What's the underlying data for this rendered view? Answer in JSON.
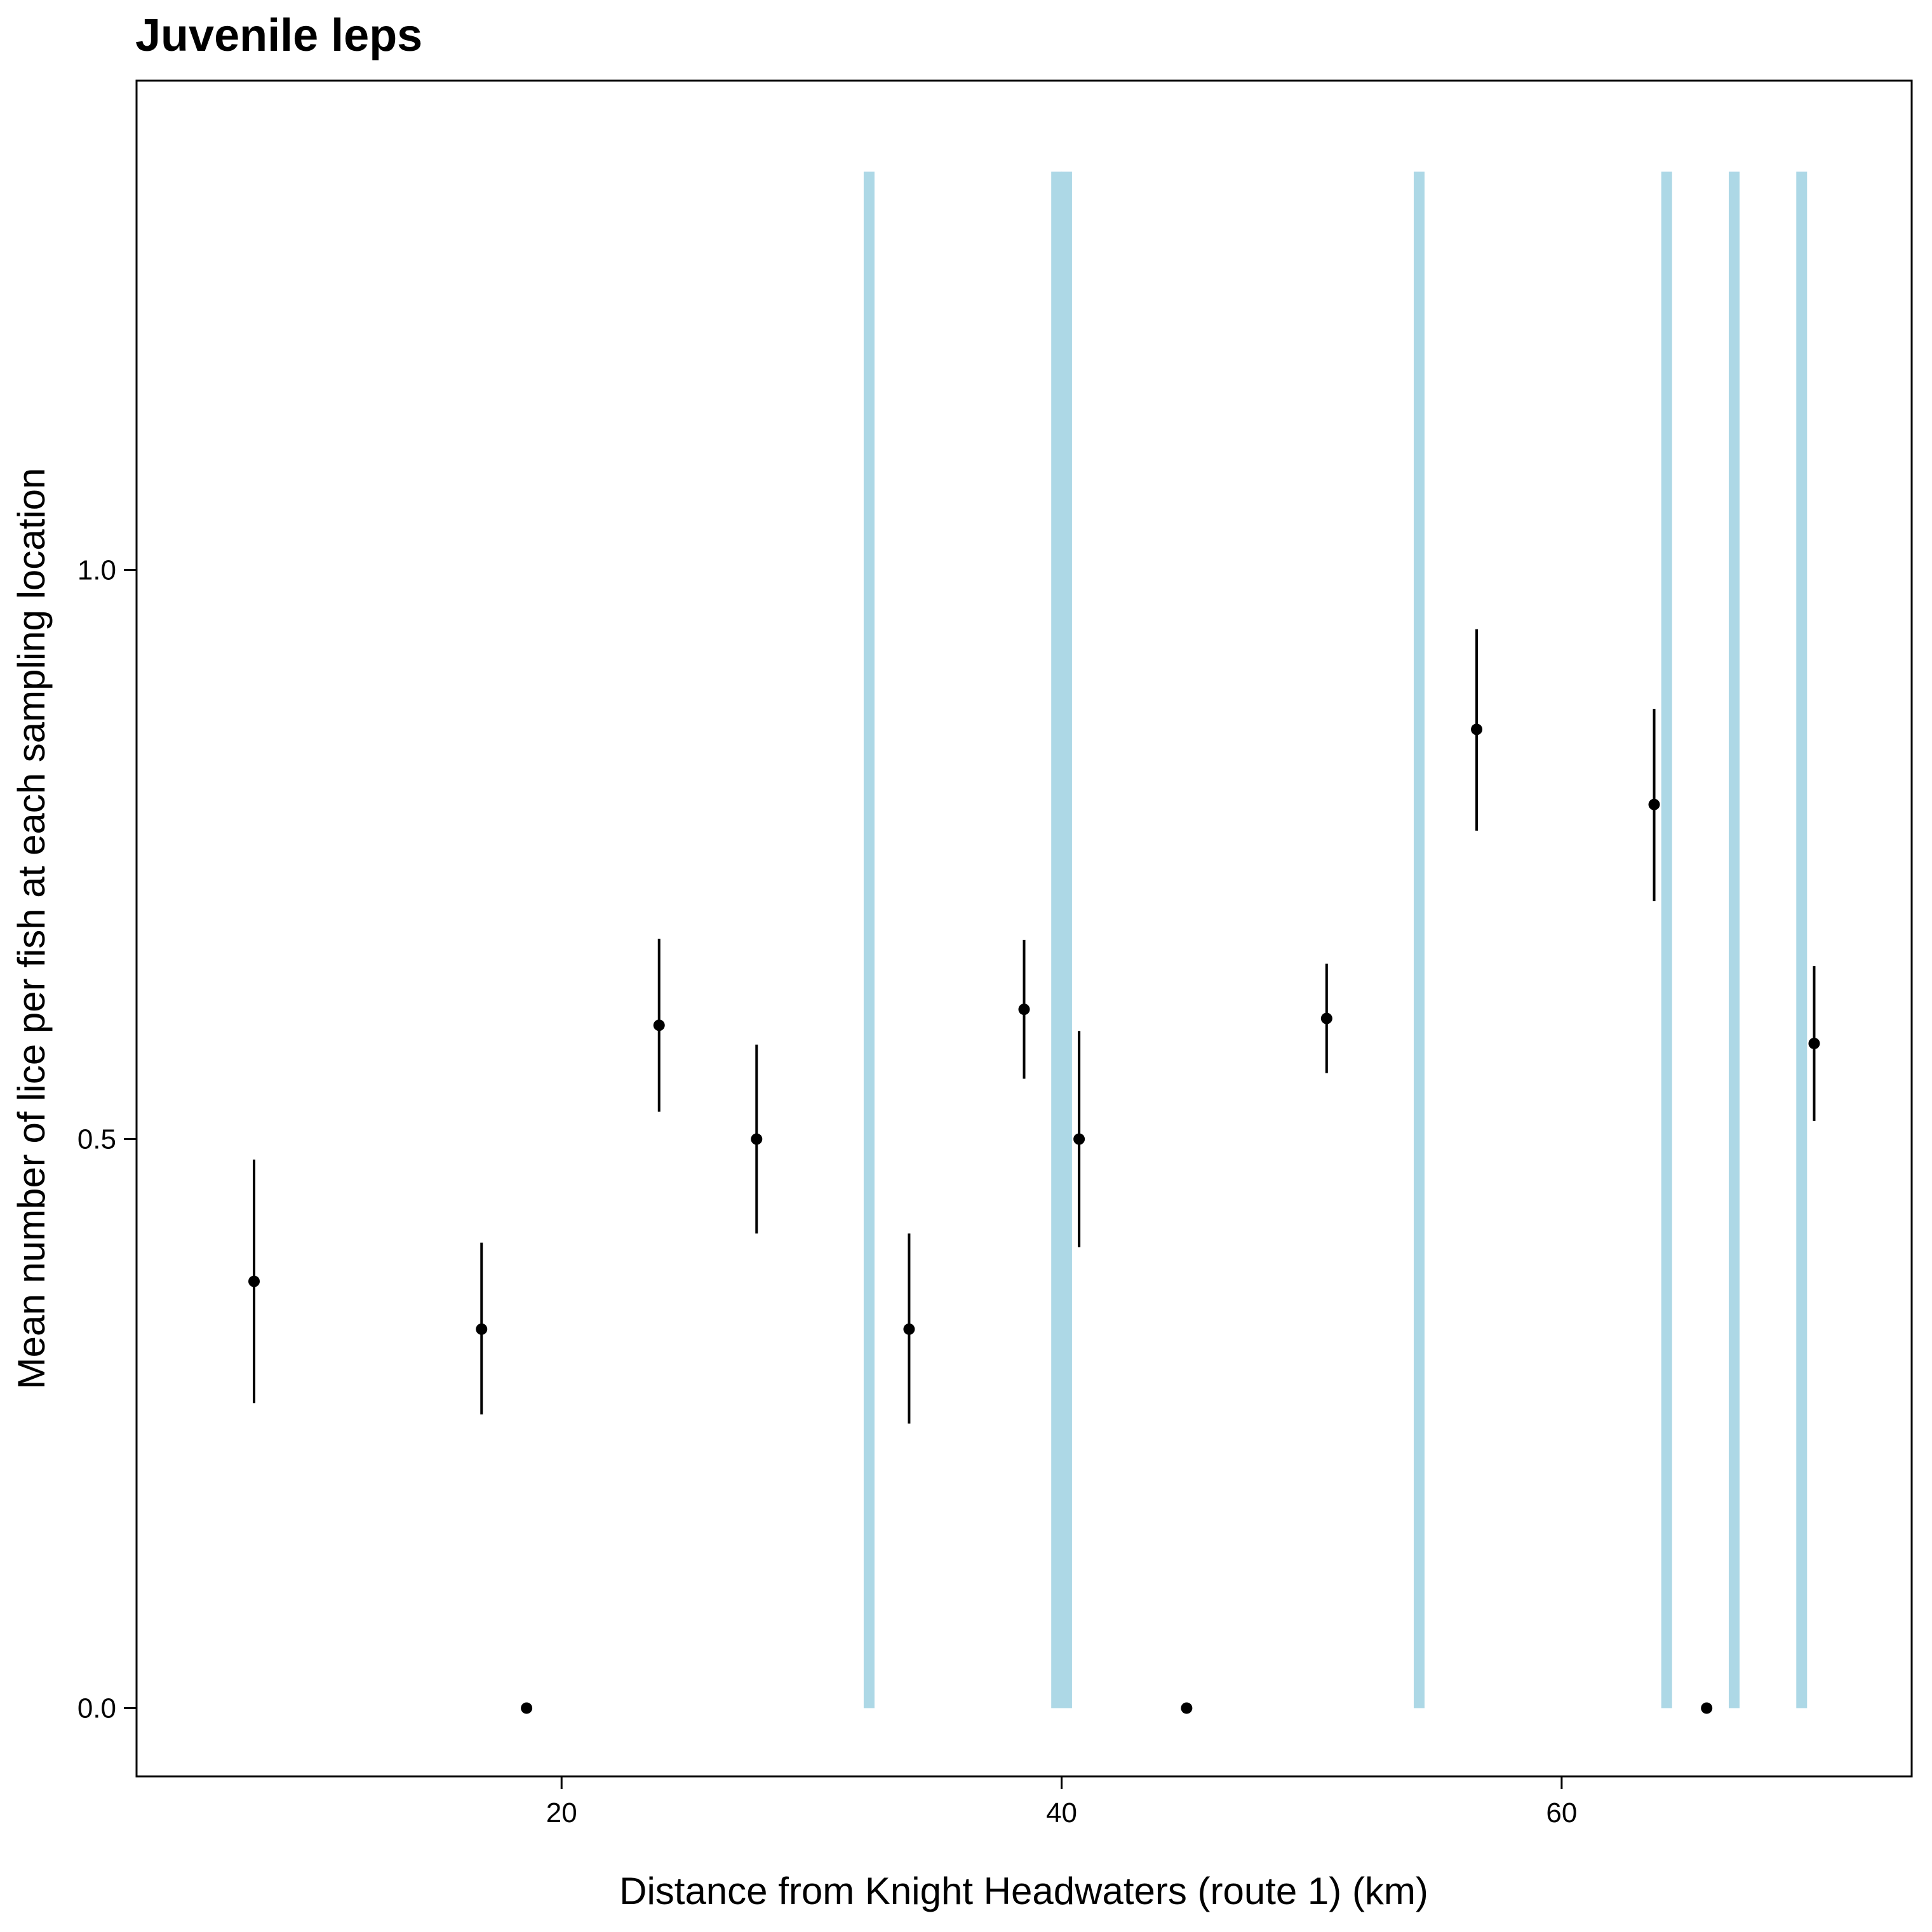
{
  "chart_data": {
    "type": "scatter",
    "title": "Juvenile leps",
    "xlabel": "Distance from Knight Headwaters (route 1) (km)",
    "ylabel": "Mean number of lice per fish at each sampling location",
    "xlim": [
      3.0,
      74.0
    ],
    "ylim": [
      -0.06,
      1.43
    ],
    "xticks": [
      {
        "value": 20,
        "label": "20"
      },
      {
        "value": 40,
        "label": "40"
      },
      {
        "value": 60,
        "label": "60"
      }
    ],
    "yticks": [
      {
        "value": 0.0,
        "label": "0.0"
      },
      {
        "value": 0.5,
        "label": "0.5"
      },
      {
        "value": 1.0,
        "label": "1.0"
      }
    ],
    "grid": false,
    "reference_lines": {
      "orientation": "vertical",
      "color": "#add8e6",
      "y_range": [
        0.0,
        1.35
      ],
      "x": [
        32.3,
        39.8,
        40.2,
        54.3,
        64.2,
        66.9,
        69.6
      ]
    },
    "points": {
      "color": "#000000",
      "data": [
        {
          "x": 7.7,
          "y": 0.375,
          "ylow": 0.268,
          "yhigh": 0.482
        },
        {
          "x": 16.8,
          "y": 0.333,
          "ylow": 0.258,
          "yhigh": 0.409
        },
        {
          "x": 18.6,
          "y": 0.0
        },
        {
          "x": 23.9,
          "y": 0.6,
          "ylow": 0.524,
          "yhigh": 0.676
        },
        {
          "x": 27.8,
          "y": 0.5,
          "ylow": 0.417,
          "yhigh": 0.583
        },
        {
          "x": 33.9,
          "y": 0.333,
          "ylow": 0.25,
          "yhigh": 0.417
        },
        {
          "x": 38.5,
          "y": 0.614,
          "ylow": 0.553,
          "yhigh": 0.675
        },
        {
          "x": 40.7,
          "y": 0.5,
          "ylow": 0.405,
          "yhigh": 0.595
        },
        {
          "x": 45.0,
          "y": 0.0
        },
        {
          "x": 50.6,
          "y": 0.606,
          "ylow": 0.558,
          "yhigh": 0.654
        },
        {
          "x": 56.6,
          "y": 0.86,
          "ylow": 0.771,
          "yhigh": 0.948
        },
        {
          "x": 63.7,
          "y": 0.794,
          "ylow": 0.709,
          "yhigh": 0.878
        },
        {
          "x": 65.8,
          "y": 0.0
        },
        {
          "x": 70.1,
          "y": 0.584,
          "ylow": 0.516,
          "yhigh": 0.652
        }
      ]
    }
  }
}
